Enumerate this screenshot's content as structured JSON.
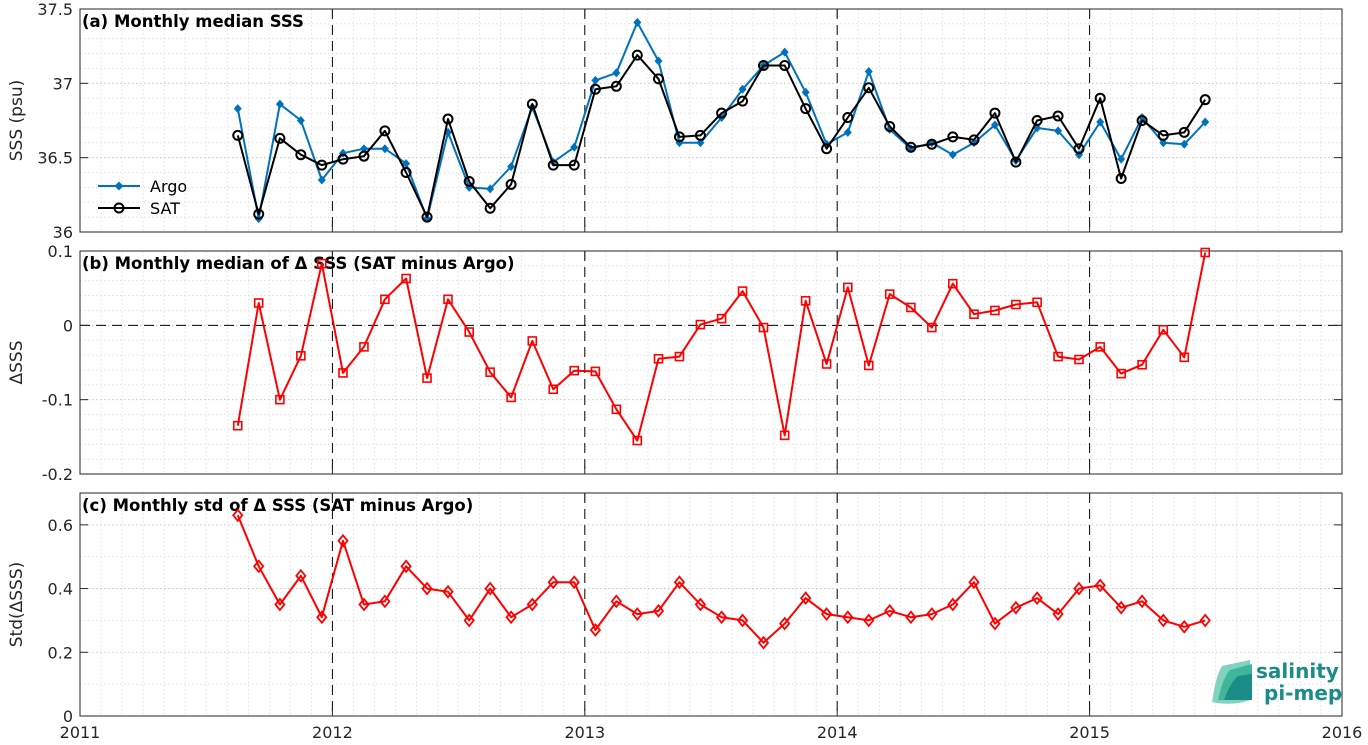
{
  "chart_data": [
    {
      "type": "line",
      "title": "(a) Monthly median SSS",
      "ylabel": "SSS (psu)",
      "ylim": [
        36,
        37.5
      ],
      "yticks": [
        "36",
        "36.5",
        "37",
        "37.5"
      ],
      "xlim": [
        2011,
        2016
      ],
      "grid": true,
      "legend_position": "middle-left",
      "x": [
        2011.625,
        2011.708,
        2011.792,
        2011.875,
        2011.958,
        2012.042,
        2012.125,
        2012.208,
        2012.292,
        2012.375,
        2012.458,
        2012.542,
        2012.625,
        2012.708,
        2012.792,
        2012.875,
        2012.958,
        2013.042,
        2013.125,
        2013.208,
        2013.292,
        2013.375,
        2013.458,
        2013.542,
        2013.625,
        2013.708,
        2013.792,
        2013.875,
        2013.958,
        2014.042,
        2014.125,
        2014.208,
        2014.292,
        2014.375,
        2014.458,
        2014.542,
        2014.625,
        2014.708,
        2014.792,
        2014.875,
        2014.958,
        2015.042,
        2015.125,
        2015.208,
        2015.292,
        2015.375,
        2015.458
      ],
      "series": [
        {
          "name": "Argo",
          "color": "#0072bd",
          "marker": "filled-diamond",
          "values": [
            36.83,
            36.09,
            36.86,
            36.75,
            36.35,
            36.53,
            36.56,
            36.56,
            36.46,
            36.09,
            36.67,
            36.3,
            36.29,
            36.44,
            36.84,
            36.47,
            36.57,
            37.02,
            37.07,
            37.41,
            37.15,
            36.6,
            36.6,
            36.77,
            36.96,
            37.12,
            37.21,
            36.94,
            36.59,
            36.67,
            37.08,
            36.69,
            36.56,
            36.6,
            36.52,
            36.6,
            36.72,
            36.48,
            36.7,
            36.68,
            36.52,
            36.74,
            36.49,
            36.77,
            36.6,
            36.59,
            36.74
          ]
        },
        {
          "name": "SAT",
          "color": "#000000",
          "marker": "open-circle",
          "values": [
            36.65,
            36.12,
            36.63,
            36.52,
            36.45,
            36.49,
            36.51,
            36.68,
            36.4,
            36.1,
            36.76,
            36.34,
            36.16,
            36.32,
            36.86,
            36.45,
            36.45,
            36.96,
            36.98,
            37.19,
            37.03,
            36.64,
            36.65,
            36.8,
            36.88,
            37.12,
            37.12,
            36.83,
            36.56,
            36.77,
            36.97,
            36.71,
            36.57,
            36.59,
            36.64,
            36.62,
            36.8,
            36.47,
            36.75,
            36.78,
            36.56,
            36.9,
            36.36,
            36.75,
            36.65,
            36.67,
            36.89
          ]
        }
      ]
    },
    {
      "type": "line",
      "title": "(b) Monthly median of Δ SSS (SAT minus Argo)",
      "ylabel": "ΔSSS",
      "ylim": [
        -0.2,
        0.1
      ],
      "yticks": [
        "-0.2",
        "-0.1",
        "0",
        "0.1"
      ],
      "xlim": [
        2011,
        2016
      ],
      "grid": true,
      "series": [
        {
          "color": "#ff0000",
          "marker": "open-square",
          "values": [
            -0.135,
            0.03,
            -0.1,
            -0.041,
            0.083,
            -0.064,
            -0.029,
            0.035,
            0.063,
            -0.071,
            0.035,
            -0.009,
            -0.063,
            -0.097,
            -0.021,
            -0.086,
            -0.061,
            -0.062,
            -0.113,
            -0.155,
            -0.045,
            -0.042,
            0.001,
            0.009,
            0.046,
            -0.003,
            -0.148,
            0.033,
            -0.052,
            0.051,
            -0.054,
            0.042,
            0.024,
            -0.003,
            0.056,
            0.015,
            0.02,
            0.028,
            0.031,
            -0.042,
            -0.046,
            -0.029,
            -0.065,
            -0.053,
            -0.006,
            -0.043,
            0.098
          ]
        }
      ]
    },
    {
      "type": "line",
      "title": "(c) Monthly std of Δ SSS (SAT minus Argo)",
      "ylabel": "Std(ΔSSS)",
      "ylim": [
        0,
        0.7
      ],
      "yticks": [
        "0",
        "0.2",
        "0.4",
        "0.6"
      ],
      "xlim": [
        2011,
        2016
      ],
      "xticks": [
        "2011",
        "2012",
        "2013",
        "2014",
        "2015",
        "2016"
      ],
      "grid": true,
      "series": [
        {
          "color": "#ff0000",
          "marker": "open-diamond",
          "values": [
            0.63,
            0.47,
            0.35,
            0.44,
            0.31,
            0.55,
            0.35,
            0.36,
            0.47,
            0.4,
            0.39,
            0.3,
            0.4,
            0.31,
            0.35,
            0.42,
            0.42,
            0.27,
            0.36,
            0.32,
            0.33,
            0.42,
            0.35,
            0.31,
            0.3,
            0.23,
            0.29,
            0.37,
            0.32,
            0.31,
            0.3,
            0.33,
            0.31,
            0.32,
            0.35,
            0.42,
            0.29,
            0.34,
            0.37,
            0.32,
            0.4,
            0.41,
            0.34,
            0.36,
            0.3,
            0.28,
            0.3
          ]
        }
      ]
    }
  ],
  "logo": {
    "line1": "salinity",
    "line2": "pi-mep",
    "color": "#1b8c88"
  }
}
